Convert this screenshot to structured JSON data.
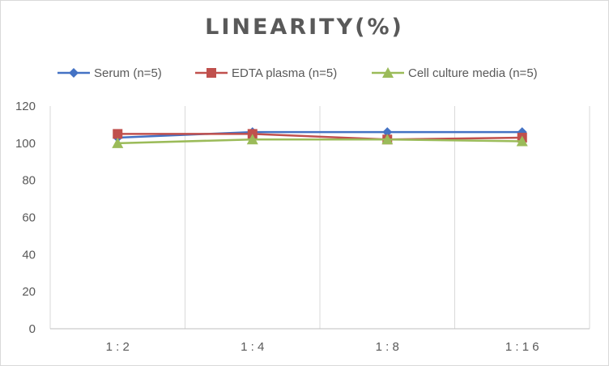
{
  "chart_data": {
    "type": "line",
    "title": "LINEARITY(%)",
    "xlabel": "",
    "ylabel": "",
    "categories": [
      "1:2",
      "1:4",
      "1:8",
      "1:16"
    ],
    "ylim": [
      0,
      120
    ],
    "yticks": [
      0,
      20,
      40,
      60,
      80,
      100,
      120
    ],
    "grid": "vertical",
    "legend": "top",
    "series": [
      {
        "name": "Serum (n=5)",
        "color": "#4472c4",
        "marker": "diamond",
        "values": [
          103,
          106,
          106,
          106
        ]
      },
      {
        "name": "EDTA plasma (n=5)",
        "color": "#c0504d",
        "marker": "square",
        "values": [
          105,
          105,
          102,
          103
        ]
      },
      {
        "name": "Cell culture media (n=5)",
        "color": "#9bbb59",
        "marker": "triangle",
        "values": [
          100,
          102,
          102,
          101
        ]
      }
    ]
  }
}
